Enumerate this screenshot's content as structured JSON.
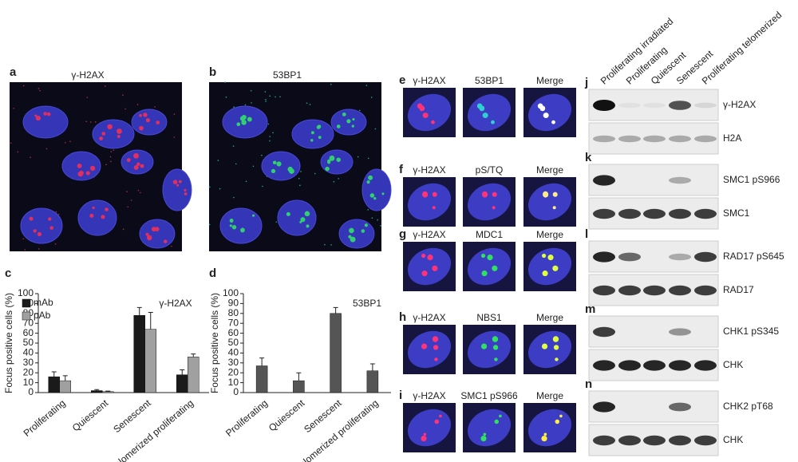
{
  "micrographs": [
    {
      "letter": "a",
      "title": "γ-H2AX"
    },
    {
      "letter": "b",
      "title": "53BP1"
    }
  ],
  "stains": [
    {
      "letter": "e",
      "labels": [
        "γ-H2AX",
        "53BP1",
        "Merge"
      ]
    },
    {
      "letter": "f",
      "labels": [
        "γ-H2AX",
        "pS/TQ",
        "Merge"
      ]
    },
    {
      "letter": "g",
      "labels": [
        "γ-H2AX",
        "MDC1",
        "Merge"
      ]
    },
    {
      "letter": "h",
      "labels": [
        "γ-H2AX",
        "NBS1",
        "Merge"
      ]
    },
    {
      "letter": "i",
      "labels": [
        "γ-H2AX",
        "SMC1 pS966",
        "Merge"
      ]
    }
  ],
  "blots": {
    "lanes": [
      "Proliferating irradiated",
      "Proliferating",
      "Quiescent",
      "Senescent",
      "Proliferating telomerized"
    ],
    "panels": [
      {
        "letter": "j",
        "rows": [
          "γ-H2AX",
          "H2A"
        ]
      },
      {
        "letter": "k",
        "rows": [
          "SMC1 pS966",
          "SMC1"
        ]
      },
      {
        "letter": "l",
        "rows": [
          "RAD17 pS645",
          "RAD17"
        ]
      },
      {
        "letter": "m",
        "rows": [
          "CHK1 pS345",
          "CHK"
        ]
      },
      {
        "letter": "n",
        "rows": [
          "CHK2 pT68",
          "CHK"
        ]
      }
    ]
  },
  "chart_data": [
    {
      "type": "bar",
      "panel_label": "c",
      "title": "γ-H2AX",
      "y_label": "Focus positive cells (%)",
      "categories": [
        "Proliferating",
        "Quiescent",
        "Senescent",
        "Telomerized proliferating"
      ],
      "series": [
        {
          "name": "mAb",
          "color": "#1a1a1a",
          "values": [
            16,
            2,
            78,
            18
          ],
          "errors": [
            5,
            1,
            8,
            5
          ]
        },
        {
          "name": "pAb",
          "color": "#a0a0a0",
          "values": [
            12,
            1,
            64,
            36
          ],
          "errors": [
            5,
            0.5,
            17,
            3
          ]
        }
      ],
      "ylim": [
        0,
        100
      ],
      "yticks": [
        0,
        10,
        20,
        30,
        40,
        50,
        60,
        70,
        80,
        90,
        100
      ]
    },
    {
      "type": "bar",
      "panel_label": "d",
      "title": "53BP1",
      "y_label": "Focus positive cells (%)",
      "categories": [
        "Proliferating",
        "Quiescent",
        "Senescent",
        "Telomerized proliferating"
      ],
      "series": [
        {
          "color": "#555555",
          "values": [
            27,
            12,
            80,
            22
          ],
          "errors": [
            8,
            8,
            6,
            7
          ]
        }
      ],
      "ylim": [
        0,
        100
      ],
      "yticks": [
        0,
        10,
        20,
        30,
        40,
        50,
        60,
        70,
        80,
        90,
        100
      ]
    }
  ]
}
